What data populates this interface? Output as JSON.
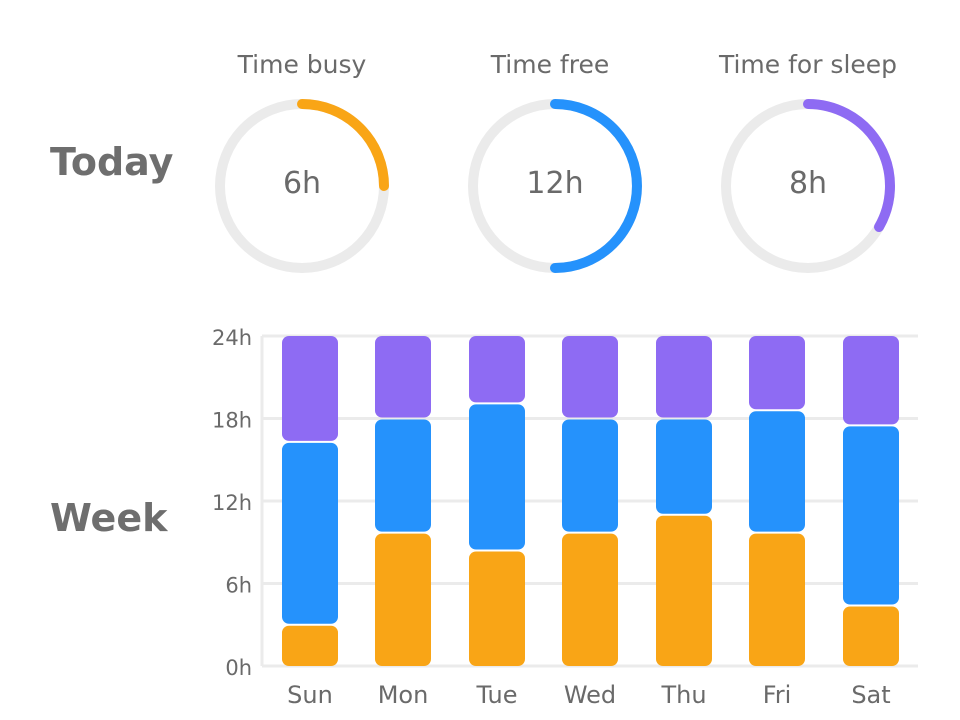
{
  "today": {
    "label": "Today",
    "rings": [
      {
        "title": "Time busy",
        "value_label": "6h",
        "hours": 6,
        "color": "#F9A516"
      },
      {
        "title": "Time free",
        "value_label": "12h",
        "hours": 12,
        "color": "#2592FC"
      },
      {
        "title": "Time for sleep",
        "value_label": "8h",
        "hours": 8,
        "color": "#8E6BF3"
      }
    ],
    "track_color": "#EBEBEB",
    "total_hours": 24
  },
  "week": {
    "label": "Week"
  },
  "chart_data": {
    "type": "bar",
    "stacked": true,
    "categories": [
      "Sun",
      "Mon",
      "Tue",
      "Wed",
      "Thu",
      "Fri",
      "Sat"
    ],
    "series": [
      {
        "name": "Time busy",
        "color": "#F9A516",
        "values": [
          3,
          9.7,
          8.4,
          9.7,
          11,
          9.7,
          4.4
        ]
      },
      {
        "name": "Time free",
        "color": "#2592FC",
        "values": [
          13.3,
          8.3,
          10.7,
          8.3,
          7,
          8.9,
          13.1
        ]
      },
      {
        "name": "Time for sleep",
        "color": "#8E6BF3",
        "values": [
          7.7,
          6,
          4.9,
          6,
          6,
          5.4,
          6.5
        ]
      }
    ],
    "yticks": [
      "0h",
      "6h",
      "12h",
      "18h",
      "24h"
    ],
    "ytick_values": [
      0,
      6,
      12,
      18,
      24
    ],
    "ylim": [
      0,
      24
    ],
    "grid": true,
    "grid_color": "#EBEBEB"
  }
}
